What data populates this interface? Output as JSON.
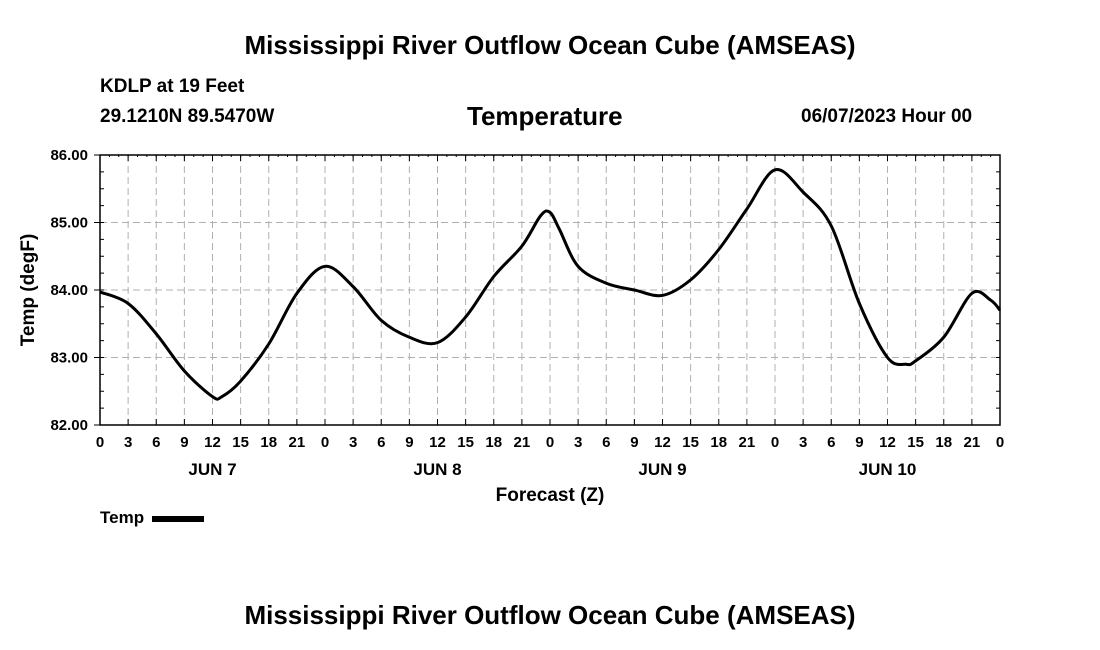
{
  "page": {
    "title": "Mississippi River Outflow Ocean Cube (AMSEAS)",
    "footer_title": "Mississippi River Outflow Ocean Cube (AMSEAS)",
    "station": "KDLP at 19 Feet",
    "coords": "29.1210N  89.5470W",
    "chart_title": "Temperature",
    "run_time": "06/07/2023 Hour 00"
  },
  "chart_data": {
    "type": "line",
    "title": "Temperature",
    "xlabel": "Forecast (Z)",
    "ylabel": "Temp (degF)",
    "xlim": [
      0,
      96
    ],
    "ylim": [
      82,
      86
    ],
    "y_ticks": [
      "82.00",
      "83.00",
      "84.00",
      "85.00",
      "86.00"
    ],
    "y_tick_values": [
      82,
      83,
      84,
      85,
      86
    ],
    "x_tick_labels": [
      "0",
      "3",
      "6",
      "9",
      "12",
      "15",
      "18",
      "21",
      "0",
      "3",
      "6",
      "9",
      "12",
      "15",
      "18",
      "21",
      "0",
      "3",
      "6",
      "9",
      "12",
      "15",
      "18",
      "21",
      "0",
      "3",
      "6",
      "9",
      "12",
      "15",
      "18",
      "21",
      "0"
    ],
    "day_labels": [
      {
        "label": "JUN 7",
        "hour": 12
      },
      {
        "label": "JUN 8",
        "hour": 36
      },
      {
        "label": "JUN 9",
        "hour": 60
      },
      {
        "label": "JUN 10",
        "hour": 84
      }
    ],
    "grid": true,
    "legend": "bottom-left",
    "series": [
      {
        "name": "Temp",
        "color": "#000000",
        "x": [
          0,
          3,
          6,
          9,
          12,
          13,
          15,
          18,
          21,
          24,
          27,
          30,
          33,
          36,
          39,
          42,
          45,
          47,
          48,
          49,
          51,
          54,
          57,
          60,
          63,
          66,
          69,
          72,
          75,
          78,
          81,
          84,
          86,
          87,
          90,
          93,
          95,
          96
        ],
        "values": [
          83.97,
          83.8,
          83.35,
          82.8,
          82.42,
          82.42,
          82.65,
          83.2,
          83.95,
          84.35,
          84.05,
          83.55,
          83.3,
          83.22,
          83.6,
          84.2,
          84.65,
          85.1,
          85.15,
          84.9,
          84.35,
          84.1,
          84.0,
          83.92,
          84.15,
          84.6,
          85.2,
          85.78,
          85.45,
          84.95,
          83.8,
          83.0,
          82.9,
          82.95,
          83.3,
          83.95,
          83.85,
          83.7
        ]
      }
    ]
  }
}
